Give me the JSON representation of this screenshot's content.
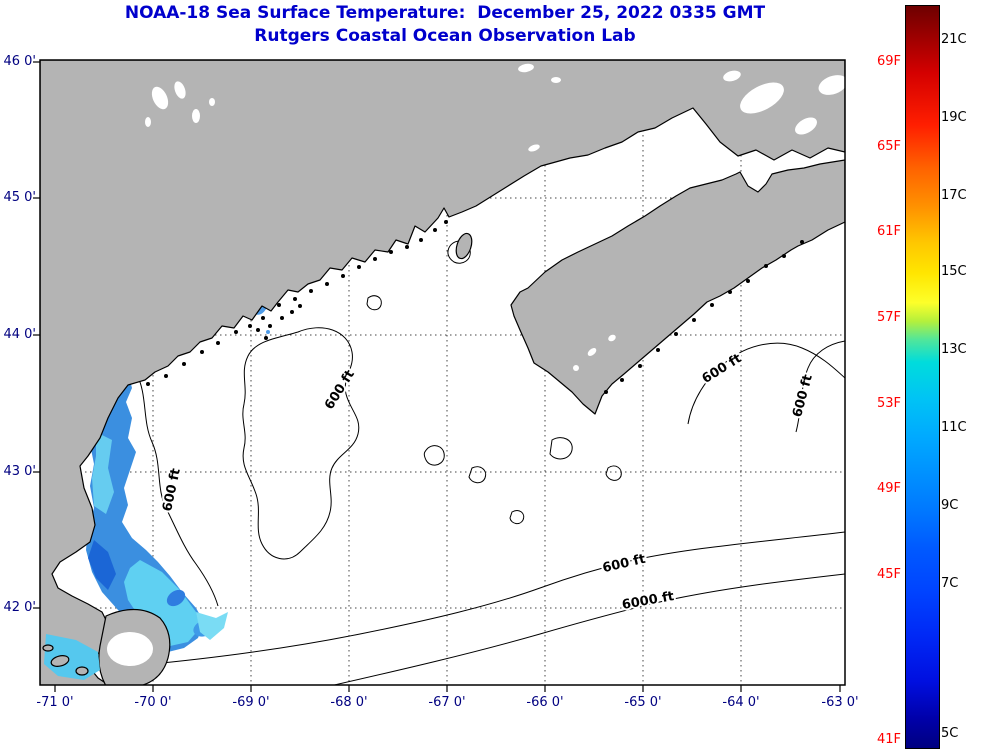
{
  "title": {
    "line1": "NOAA-18 Sea Surface Temperature:  December 25, 2022 0335 GMT",
    "line2": "Rutgers Coastal Ocean Observation Lab"
  },
  "axes": {
    "x_tick_labels": [
      "-71 0'",
      "-70 0'",
      "-69 0'",
      "-68 0'",
      "-67 0'",
      "-66 0'",
      "-65 0'",
      "-64 0'",
      "-63 0'"
    ],
    "y_tick_labels": [
      "46 0'",
      "45 0'",
      "44 0'",
      "43 0'",
      "42 0'"
    ]
  },
  "colorbar": {
    "fahrenheit_labels": [
      "69F",
      "65F",
      "61F",
      "57F",
      "53F",
      "49F",
      "45F",
      "41F"
    ],
    "celsius_labels": [
      "21C",
      "19C",
      "17C",
      "15C",
      "13C",
      "11C",
      "9C",
      "7C",
      "5C"
    ],
    "fahrenheit_label_color": "#ff0000",
    "celsius_label_color": "#000000",
    "gradient_top_color": "#6e0000",
    "gradient_bottom_color": "#000080"
  },
  "map": {
    "contour_labels": [
      "600 ft",
      "600 ft",
      "600 ft",
      "600 ft",
      "600 ft",
      "6000 ft"
    ],
    "land_color": "#b4b4b4",
    "sst_palette": [
      "#1b66d6",
      "#3b8fe0",
      "#5fd0f2",
      "#7adcf4"
    ],
    "title_color": "#0000cc"
  }
}
